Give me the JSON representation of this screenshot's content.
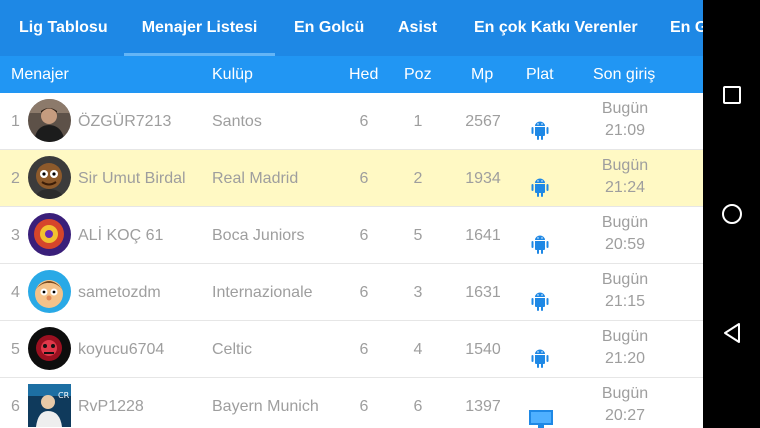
{
  "tabs": [
    "Lig Tablosu",
    "Menajer Listesi",
    "En Golcü",
    "Asist",
    "En çok Katkı Verenler",
    "En G"
  ],
  "active_tab": "Menajer Listesi",
  "columns": {
    "manager": "Menajer",
    "club": "Kulüp",
    "hed": "Hed",
    "poz": "Poz",
    "mp": "Mp",
    "plat": "Plat",
    "last_login": "Son giriş"
  },
  "rows": [
    {
      "num": "1",
      "name": "ÖZGÜR7213",
      "club": "Santos",
      "hed": "6",
      "poz": "1",
      "mp": "2567",
      "plat": "android-icon",
      "day": "Bugün",
      "time": "21:09"
    },
    {
      "num": "2",
      "name": "Sir Umut Birdal",
      "club": "Real Madrid",
      "hed": "6",
      "poz": "2",
      "mp": "1934",
      "plat": "android-icon",
      "day": "Bugün",
      "time": "21:24"
    },
    {
      "num": "3",
      "name": "ALİ KOÇ 61",
      "club": "Boca Juniors",
      "hed": "6",
      "poz": "5",
      "mp": "1641",
      "plat": "android-icon",
      "day": "Bugün",
      "time": "20:59"
    },
    {
      "num": "4",
      "name": "sametozdm",
      "club": "Internazionale",
      "hed": "6",
      "poz": "3",
      "mp": "1631",
      "plat": "android-icon",
      "day": "Bugün",
      "time": "21:15"
    },
    {
      "num": "5",
      "name": "koyucu6704",
      "club": "Celtic",
      "hed": "6",
      "poz": "4",
      "mp": "1540",
      "plat": "android-icon",
      "day": "Bugün",
      "time": "21:20"
    },
    {
      "num": "6",
      "name": "RvP1228",
      "club": "Bayern Munich",
      "hed": "6",
      "poz": "6",
      "mp": "1397",
      "plat": "desktop-icon",
      "day": "Bugün",
      "time": "20:27"
    }
  ],
  "colors": {
    "tab_bar": "#1e88e5",
    "header": "#2196f3",
    "highlight_row": "#fff9c4",
    "platform_icon": "#1e88e5",
    "text_muted": "#9e9e9e"
  },
  "navbar": [
    "recent-apps-icon",
    "home-icon",
    "back-icon"
  ]
}
